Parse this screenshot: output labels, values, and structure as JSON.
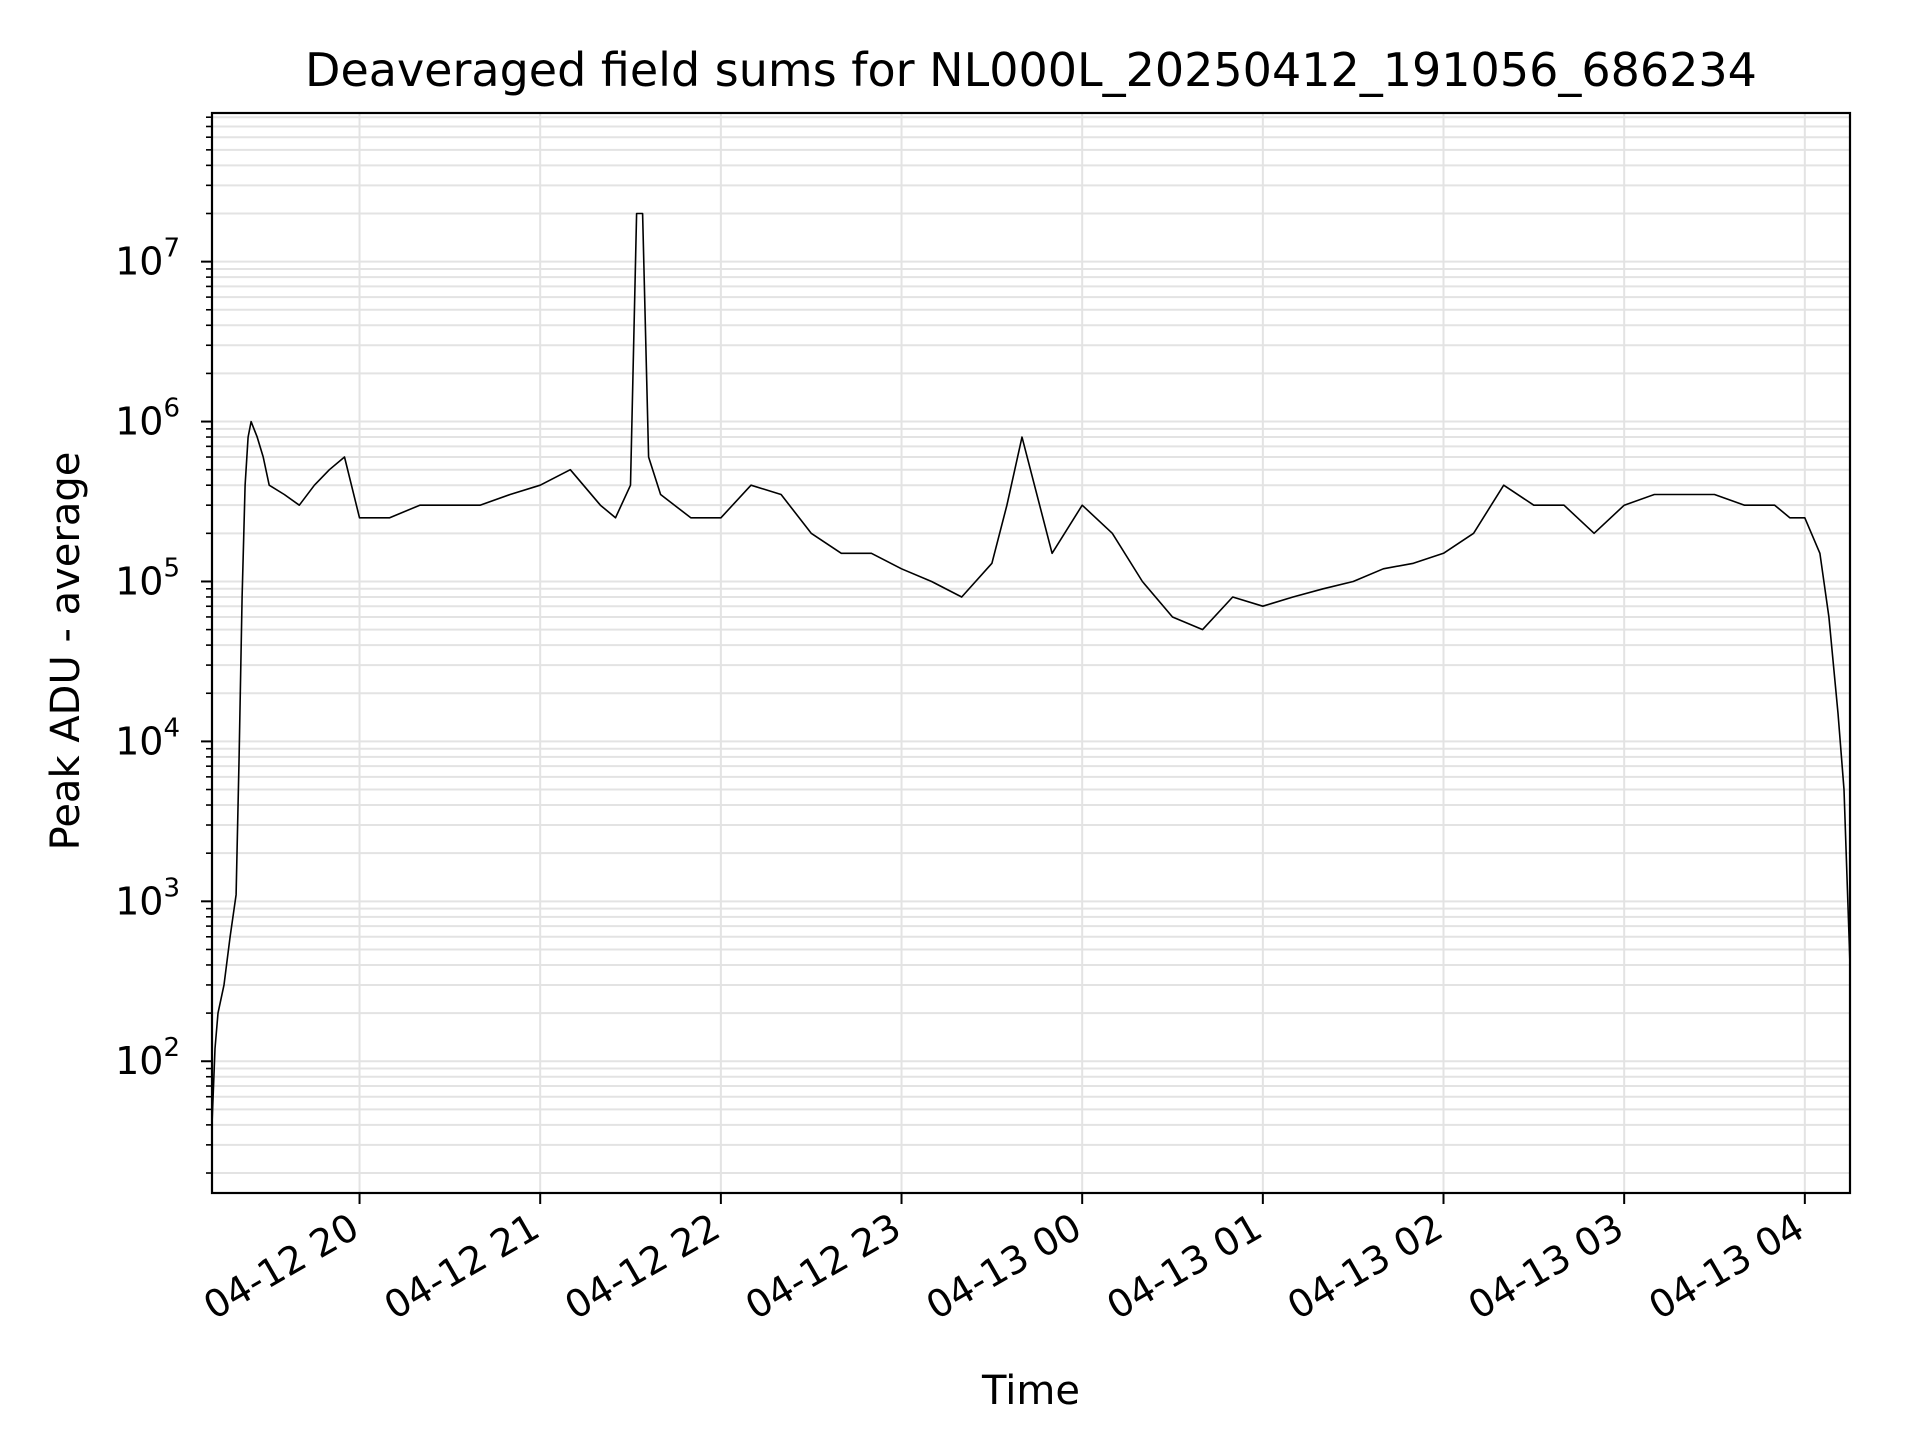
{
  "chart_data": {
    "type": "line",
    "title": "Deaveraged field sums for NL000L_20250412_191056_686234",
    "xlabel": "Time",
    "ylabel": "Peak ADU - average",
    "yscale": "log",
    "grid": true,
    "x_ticks": [
      "04-12 20",
      "04-12 21",
      "04-12 22",
      "04-12 23",
      "04-13 00",
      "04-13 01",
      "04-13 02",
      "04-13 03",
      "04-13 04"
    ],
    "y_ticks": [
      {
        "base": "10",
        "exp": "2",
        "value": 100
      },
      {
        "base": "10",
        "exp": "3",
        "value": 1000
      },
      {
        "base": "10",
        "exp": "4",
        "value": 10000
      },
      {
        "base": "10",
        "exp": "5",
        "value": 100000
      },
      {
        "base": "10",
        "exp": "6",
        "value": 1000000
      },
      {
        "base": "10",
        "exp": "7",
        "value": 10000000
      }
    ],
    "xlim": [
      "2025-04-12 19:11",
      "2025-04-13 04:15"
    ],
    "ylim": [
      15,
      85000000
    ],
    "series": [
      {
        "line_color": "#000000",
        "x": [
          "2025-04-12 19:11",
          "2025-04-12 19:12",
          "2025-04-12 19:13",
          "2025-04-12 19:15",
          "2025-04-12 19:17",
          "2025-04-12 19:19",
          "2025-04-12 19:20",
          "2025-04-12 19:21",
          "2025-04-12 19:22",
          "2025-04-12 19:23",
          "2025-04-12 19:24",
          "2025-04-12 19:26",
          "2025-04-12 19:28",
          "2025-04-12 19:30",
          "2025-04-12 19:35",
          "2025-04-12 19:40",
          "2025-04-12 19:45",
          "2025-04-12 19:50",
          "2025-04-12 19:55",
          "2025-04-12 20:00",
          "2025-04-12 20:10",
          "2025-04-12 20:20",
          "2025-04-12 20:30",
          "2025-04-12 20:40",
          "2025-04-12 20:50",
          "2025-04-12 21:00",
          "2025-04-12 21:10",
          "2025-04-12 21:20",
          "2025-04-12 21:25",
          "2025-04-12 21:30",
          "2025-04-12 21:32",
          "2025-04-12 21:34",
          "2025-04-12 21:36",
          "2025-04-12 21:40",
          "2025-04-12 21:50",
          "2025-04-12 22:00",
          "2025-04-12 22:10",
          "2025-04-12 22:20",
          "2025-04-12 22:30",
          "2025-04-12 22:40",
          "2025-04-12 22:50",
          "2025-04-12 23:00",
          "2025-04-12 23:10",
          "2025-04-12 23:20",
          "2025-04-12 23:30",
          "2025-04-12 23:35",
          "2025-04-12 23:40",
          "2025-04-12 23:50",
          "2025-04-13 00:00",
          "2025-04-13 00:10",
          "2025-04-13 00:20",
          "2025-04-13 00:30",
          "2025-04-13 00:40",
          "2025-04-13 00:50",
          "2025-04-13 01:00",
          "2025-04-13 01:10",
          "2025-04-13 01:20",
          "2025-04-13 01:30",
          "2025-04-13 01:40",
          "2025-04-13 01:50",
          "2025-04-13 02:00",
          "2025-04-13 02:10",
          "2025-04-13 02:20",
          "2025-04-13 02:30",
          "2025-04-13 02:40",
          "2025-04-13 02:50",
          "2025-04-13 03:00",
          "2025-04-13 03:10",
          "2025-04-13 03:20",
          "2025-04-13 03:30",
          "2025-04-13 03:40",
          "2025-04-13 03:50",
          "2025-04-13 03:55",
          "2025-04-13 04:00",
          "2025-04-13 04:05",
          "2025-04-13 04:08",
          "2025-04-13 04:11",
          "2025-04-13 04:13",
          "2025-04-13 04:15"
        ],
        "y": [
          40,
          120,
          200,
          300,
          600,
          1100,
          8000,
          80000,
          400000,
          800000,
          1000000,
          800000,
          600000,
          400000,
          350000,
          300000,
          400000,
          500000,
          600000,
          250000,
          250000,
          300000,
          300000,
          300000,
          350000,
          400000,
          500000,
          300000,
          250000,
          400000,
          20000000,
          20000000,
          600000,
          350000,
          250000,
          250000,
          400000,
          350000,
          200000,
          150000,
          150000,
          120000,
          100000,
          80000,
          130000,
          300000,
          800000,
          150000,
          300000,
          200000,
          100000,
          60000,
          50000,
          80000,
          70000,
          80000,
          90000,
          100000,
          120000,
          130000,
          150000,
          200000,
          400000,
          300000,
          300000,
          200000,
          300000,
          350000,
          350000,
          350000,
          300000,
          300000,
          250000,
          250000,
          150000,
          60000,
          15000,
          5000,
          400
        ]
      }
    ]
  }
}
